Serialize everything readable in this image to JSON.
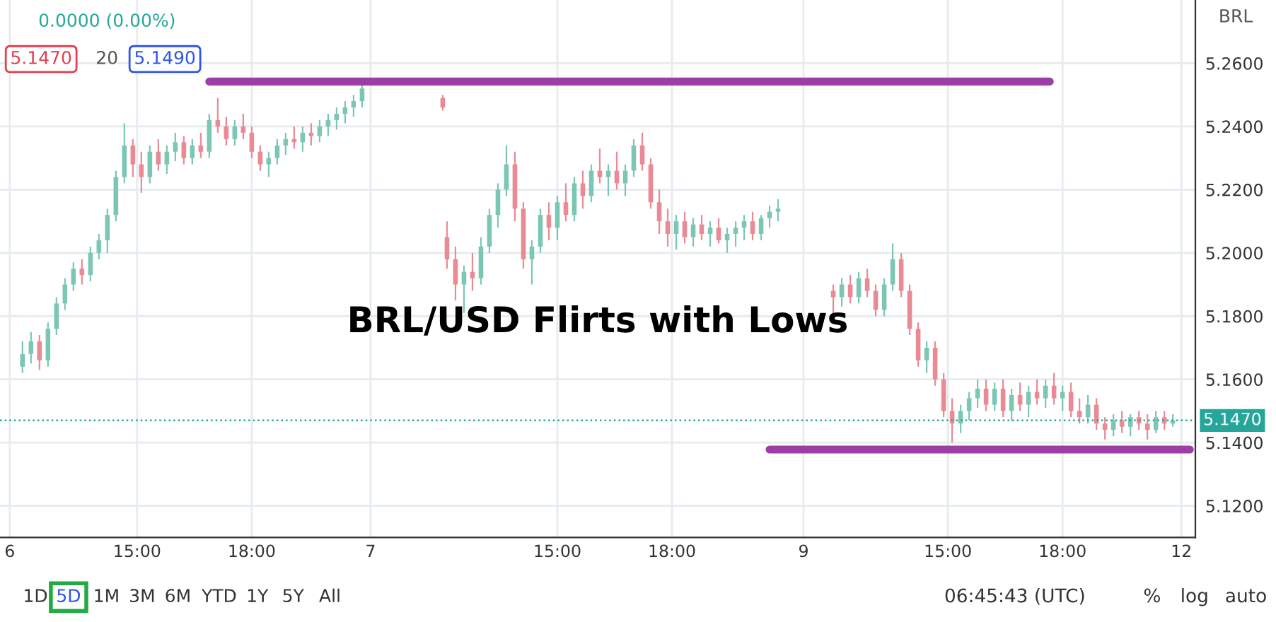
{
  "chart_data": {
    "type": "candlestick",
    "title": "BRL/USD Flirts with Lows",
    "categories": [
      "6",
      null,
      null,
      null,
      null,
      null,
      null,
      null,
      null,
      null,
      null,
      null,
      null,
      null,
      null,
      null,
      null,
      null,
      null,
      null,
      null,
      null,
      null,
      null,
      null,
      null,
      null,
      null,
      null,
      null,
      "15:00",
      null,
      null,
      null,
      null,
      null,
      null,
      null,
      null,
      null,
      null,
      null,
      null,
      null,
      null,
      null,
      null,
      null,
      null,
      null,
      null,
      null,
      null,
      null,
      null,
      null,
      null,
      "18:00",
      null,
      null,
      null,
      null,
      null,
      null,
      null,
      null,
      null,
      null,
      null,
      null,
      null,
      null,
      null,
      null,
      null,
      null,
      null,
      null,
      null,
      null,
      null,
      null,
      null,
      null,
      null,
      "7",
      null,
      null,
      null,
      null,
      null,
      null,
      null,
      null,
      null,
      null,
      null,
      null,
      null,
      null,
      null,
      null,
      null,
      null,
      null,
      null,
      null,
      null,
      null,
      null,
      null,
      null,
      null,
      null,
      null,
      null,
      null,
      null,
      null,
      null,
      null,
      null,
      null,
      null,
      null,
      null,
      null,
      null,
      null,
      "15:00",
      null,
      null,
      null,
      null,
      null,
      null,
      null,
      null,
      null,
      null,
      null,
      null,
      null,
      null,
      null,
      null,
      null,
      null,
      null,
      null,
      null,
      null,
      null,
      null,
      null,
      null,
      "18:00",
      null,
      null,
      null,
      null,
      null,
      null,
      null,
      null,
      null,
      null,
      null,
      null,
      null,
      null,
      null,
      null,
      null,
      null,
      null,
      null,
      null,
      null,
      null,
      null,
      null,
      null,
      null,
      null,
      null,
      null,
      "9",
      null,
      null,
      null,
      null,
      null,
      null,
      null,
      null,
      null,
      null,
      null,
      null,
      null,
      null,
      null,
      null,
      null,
      null,
      null,
      null,
      null,
      null,
      null,
      null,
      null,
      null,
      null,
      null,
      null,
      null,
      null,
      null,
      null,
      "15:00",
      null,
      null,
      null,
      null,
      null,
      null,
      null,
      null,
      null,
      null,
      null,
      null,
      null,
      null,
      null,
      null,
      null,
      null,
      null,
      null,
      null,
      null,
      null,
      null,
      null,
      null,
      "18:00",
      null,
      null,
      null,
      null,
      null,
      null,
      null,
      null,
      null,
      null,
      null,
      null,
      null,
      null,
      null,
      null,
      null,
      null,
      null,
      null,
      null,
      null,
      null,
      null,
      null,
      null,
      null,
      "12",
      null,
      null,
      null,
      null
    ],
    "ohlc": [
      null,
      null,
      null,
      [
        5.164,
        5.172,
        5.162,
        5.168
      ],
      null,
      [
        5.168,
        5.175,
        5.165,
        5.172
      ],
      null,
      [
        5.172,
        5.174,
        5.163,
        5.166
      ],
      null,
      [
        5.166,
        5.178,
        5.164,
        5.176
      ],
      null,
      [
        5.176,
        5.186,
        5.174,
        5.184
      ],
      null,
      [
        5.184,
        5.192,
        5.182,
        5.19
      ],
      null,
      [
        5.19,
        5.197,
        5.188,
        5.195
      ],
      null,
      [
        5.195,
        5.198,
        5.19,
        5.193
      ],
      null,
      [
        5.193,
        5.202,
        5.191,
        5.2
      ],
      null,
      [
        5.2,
        5.206,
        5.198,
        5.204
      ],
      null,
      [
        5.204,
        5.214,
        5.2,
        5.212
      ],
      null,
      [
        5.212,
        5.226,
        5.21,
        5.224
      ],
      null,
      [
        5.224,
        5.241,
        5.222,
        5.234
      ],
      null,
      [
        5.234,
        5.236,
        5.224,
        5.228
      ],
      null,
      [
        5.228,
        5.232,
        5.219,
        5.224
      ],
      null,
      [
        5.224,
        5.234,
        5.222,
        5.232
      ],
      null,
      [
        5.232,
        5.236,
        5.226,
        5.228
      ],
      null,
      [
        5.228,
        5.234,
        5.225,
        5.232
      ],
      null,
      [
        5.232,
        5.238,
        5.229,
        5.235
      ],
      null,
      [
        5.235,
        5.237,
        5.228,
        5.23
      ],
      null,
      [
        5.23,
        5.236,
        5.228,
        5.234
      ],
      null,
      [
        5.234,
        5.238,
        5.23,
        5.232
      ],
      null,
      [
        5.232,
        5.244,
        5.23,
        5.242
      ],
      null,
      [
        5.242,
        5.249,
        5.238,
        5.24
      ],
      null,
      [
        5.24,
        5.243,
        5.234,
        5.236
      ],
      null,
      [
        5.236,
        5.242,
        5.234,
        5.24
      ],
      null,
      [
        5.24,
        5.244,
        5.236,
        5.238
      ],
      null,
      [
        5.238,
        5.24,
        5.23,
        5.232
      ],
      null,
      [
        5.232,
        5.234,
        5.226,
        5.228
      ],
      null,
      [
        5.228,
        5.232,
        5.224,
        5.23
      ],
      null,
      [
        5.23,
        5.236,
        5.228,
        5.234
      ],
      null,
      [
        5.234,
        5.238,
        5.231,
        5.236
      ],
      null,
      [
        5.236,
        5.24,
        5.233,
        5.235
      ],
      null,
      [
        5.235,
        5.24,
        5.232,
        5.238
      ],
      null,
      [
        5.238,
        5.241,
        5.234,
        5.237
      ],
      null,
      [
        5.237,
        5.242,
        5.235,
        5.24
      ],
      null,
      [
        5.24,
        5.244,
        5.237,
        5.242
      ],
      null,
      [
        5.242,
        5.246,
        5.239,
        5.244
      ],
      null,
      [
        5.244,
        5.248,
        5.241,
        5.246
      ],
      null,
      [
        5.246,
        5.25,
        5.243,
        5.248
      ],
      null,
      [
        5.248,
        5.254,
        5.246,
        5.252
      ],
      null,
      null,
      null,
      null,
      null,
      null,
      null,
      null,
      null,
      null,
      null,
      null,
      null,
      null,
      null,
      null,
      null,
      null,
      [
        5.249,
        5.25,
        5.245,
        5.246
      ],
      [
        5.205,
        5.21,
        5.195,
        5.198
      ],
      null,
      [
        5.198,
        5.202,
        5.185,
        5.19
      ],
      null,
      [
        5.19,
        5.196,
        5.181,
        5.194
      ],
      null,
      [
        5.194,
        5.2,
        5.188,
        5.192
      ],
      null,
      [
        5.192,
        5.205,
        5.19,
        5.202
      ],
      null,
      [
        5.202,
        5.214,
        5.2,
        5.212
      ],
      null,
      [
        5.212,
        5.222,
        5.208,
        5.22
      ],
      null,
      [
        5.22,
        5.234,
        5.218,
        5.228
      ],
      null,
      [
        5.228,
        5.232,
        5.21,
        5.214
      ],
      null,
      [
        5.214,
        5.216,
        5.195,
        5.198
      ],
      null,
      [
        5.198,
        5.204,
        5.19,
        5.202
      ],
      null,
      [
        5.202,
        5.214,
        5.2,
        5.212
      ],
      null,
      [
        5.212,
        5.216,
        5.204,
        5.208
      ],
      null,
      [
        5.208,
        5.218,
        5.204,
        5.216
      ],
      null,
      [
        5.216,
        5.222,
        5.21,
        5.212
      ],
      null,
      [
        5.212,
        5.224,
        5.21,
        5.222
      ],
      null,
      [
        5.222,
        5.226,
        5.214,
        5.218
      ],
      null,
      [
        5.218,
        5.228,
        5.216,
        5.226
      ],
      null,
      [
        5.226,
        5.233,
        5.222,
        5.224
      ],
      null,
      [
        5.224,
        5.228,
        5.218,
        5.226
      ],
      null,
      [
        5.226,
        5.232,
        5.22,
        5.222
      ],
      null,
      [
        5.222,
        5.228,
        5.218,
        5.226
      ],
      null,
      [
        5.226,
        5.236,
        5.224,
        5.234
      ],
      null,
      [
        5.234,
        5.238,
        5.226,
        5.228
      ],
      null,
      [
        5.228,
        5.23,
        5.214,
        5.216
      ],
      null,
      [
        5.216,
        5.22,
        5.206,
        5.21
      ],
      null,
      [
        5.21,
        5.214,
        5.202,
        5.206
      ],
      null,
      [
        5.206,
        5.212,
        5.201,
        5.21
      ],
      null,
      [
        5.21,
        5.213,
        5.203,
        5.205
      ],
      null,
      [
        5.205,
        5.211,
        5.202,
        5.209
      ],
      null,
      [
        5.209,
        5.212,
        5.204,
        5.206
      ],
      null,
      [
        5.206,
        5.21,
        5.202,
        5.208
      ],
      null,
      [
        5.208,
        5.211,
        5.203,
        5.204
      ],
      null,
      [
        5.204,
        5.208,
        5.2,
        5.206
      ],
      null,
      [
        5.206,
        5.21,
        5.202,
        5.208
      ],
      null,
      [
        5.208,
        5.212,
        5.204,
        5.21
      ],
      null,
      [
        5.21,
        5.213,
        5.204,
        5.206
      ],
      null,
      [
        5.206,
        5.212,
        5.204,
        5.211
      ],
      null,
      [
        5.211,
        5.215,
        5.208,
        5.213
      ],
      null,
      [
        5.213,
        5.217,
        5.21,
        5.214
      ],
      null,
      null,
      null,
      null,
      null,
      null,
      null,
      null,
      null,
      null,
      null,
      null,
      [
        5.188,
        5.19,
        5.18,
        5.186
      ],
      null,
      [
        5.186,
        5.192,
        5.183,
        5.19
      ],
      null,
      [
        5.19,
        5.193,
        5.184,
        5.186
      ],
      null,
      [
        5.186,
        5.194,
        5.184,
        5.192
      ],
      null,
      [
        5.192,
        5.195,
        5.186,
        5.188
      ],
      null,
      [
        5.188,
        5.19,
        5.18,
        5.182
      ],
      null,
      [
        5.182,
        5.192,
        5.18,
        5.19
      ],
      null,
      [
        5.19,
        5.203,
        5.188,
        5.198
      ],
      null,
      [
        5.198,
        5.2,
        5.186,
        5.188
      ],
      null,
      [
        5.188,
        5.19,
        5.174,
        5.176
      ],
      null,
      [
        5.176,
        5.178,
        5.164,
        5.166
      ],
      null,
      [
        5.166,
        5.172,
        5.162,
        5.17
      ],
      null,
      [
        5.17,
        5.172,
        5.158,
        5.16
      ],
      null,
      [
        5.16,
        5.162,
        5.148,
        5.15
      ],
      null,
      [
        5.15,
        5.154,
        5.14,
        5.146
      ],
      null,
      [
        5.146,
        5.152,
        5.143,
        5.15
      ],
      null,
      [
        5.15,
        5.156,
        5.147,
        5.154
      ],
      null,
      [
        5.154,
        5.16,
        5.151,
        5.157
      ],
      null,
      [
        5.157,
        5.16,
        5.15,
        5.152
      ],
      null,
      [
        5.152,
        5.159,
        5.15,
        5.157
      ],
      null,
      [
        5.157,
        5.16,
        5.148,
        5.15
      ],
      null,
      [
        5.15,
        5.157,
        5.147,
        5.155
      ],
      null,
      [
        5.155,
        5.159,
        5.15,
        5.152
      ],
      null,
      [
        5.152,
        5.158,
        5.148,
        5.156
      ],
      null,
      [
        5.156,
        5.16,
        5.152,
        5.154
      ],
      null,
      [
        5.154,
        5.16,
        5.151,
        5.158
      ],
      null,
      [
        5.158,
        5.162,
        5.152,
        5.154
      ],
      null,
      [
        5.154,
        5.158,
        5.15,
        5.156
      ],
      null,
      [
        5.156,
        5.159,
        5.148,
        5.15
      ],
      null,
      [
        5.15,
        5.154,
        5.146,
        5.148
      ],
      null,
      [
        5.148,
        5.155,
        5.146,
        5.152
      ],
      null,
      [
        5.152,
        5.154,
        5.144,
        5.146
      ],
      null,
      [
        5.146,
        5.148,
        5.141,
        5.144
      ],
      null,
      [
        5.144,
        5.149,
        5.142,
        5.147
      ],
      null,
      [
        5.147,
        5.15,
        5.143,
        5.145
      ],
      null,
      [
        5.145,
        5.149,
        5.142,
        5.148
      ],
      null,
      [
        5.148,
        5.15,
        5.144,
        5.146
      ],
      null,
      [
        5.146,
        5.149,
        5.141,
        5.144
      ],
      null,
      [
        5.144,
        5.15,
        5.143,
        5.148
      ],
      null,
      [
        5.148,
        5.15,
        5.144,
        5.146
      ],
      null,
      [
        5.146,
        5.149,
        5.145,
        5.147
      ],
      null,
      null,
      null,
      null,
      null,
      null
    ],
    "series": [
      {
        "type": "line",
        "color": "#9c3ea6",
        "values": [
          null,
          null,
          null,
          null,
          null,
          null,
          null,
          null,
          null,
          null,
          null,
          null,
          null,
          null,
          null,
          null,
          null,
          null,
          null,
          null,
          null,
          null,
          null,
          null,
          null,
          null,
          null,
          null,
          null,
          null,
          null,
          null,
          null,
          null,
          null,
          null,
          null,
          null,
          null,
          null,
          null,
          null,
          null,
          null,
          null,
          null,
          null,
          5.2542,
          5.2542,
          5.2542,
          5.2542,
          5.2542,
          5.2542,
          5.2542,
          5.2542,
          5.2542,
          5.2542,
          5.2542,
          5.2542,
          5.2542,
          5.2542,
          5.2542,
          5.2542,
          5.2542,
          5.2542,
          5.2542,
          5.2542,
          5.2542,
          5.2542,
          5.2542,
          5.2542,
          5.2542,
          5.2542,
          5.2542,
          5.2542,
          5.2542,
          5.2542,
          5.2542,
          5.2542,
          5.2542,
          5.2542,
          5.2542,
          5.2542,
          5.2542,
          5.2542,
          5.2542,
          5.2542,
          5.2542,
          5.2542,
          5.2542,
          5.2542,
          5.2542,
          5.2542,
          5.2542,
          5.2542,
          5.2542,
          5.2542,
          5.2542,
          5.2542,
          5.2542,
          5.2542,
          5.2542,
          5.2542,
          5.2542,
          5.2542,
          5.2542,
          5.2542,
          5.2542,
          5.2542,
          5.2542,
          5.2542,
          5.2542,
          5.2542,
          5.2542,
          5.2542,
          5.2542,
          5.2542,
          5.2542,
          5.2542,
          5.2542,
          5.2542,
          5.2542,
          5.2542,
          5.2542,
          5.2542,
          5.2542,
          5.2542,
          5.2542,
          5.2542,
          5.2542,
          5.2542,
          5.2542,
          5.2542,
          5.2542,
          5.2542,
          5.2542,
          5.2542,
          5.2542,
          5.2542,
          5.2542,
          5.2542,
          5.2542,
          5.2542,
          5.2542,
          5.2542,
          5.2542,
          5.2542,
          5.2542,
          5.2542,
          5.2542,
          5.2542,
          5.2542,
          5.2542,
          5.2542,
          5.2542,
          5.2542,
          5.2542,
          5.2542,
          5.2542,
          5.2542,
          5.2542,
          5.2542,
          5.2542,
          5.2542,
          5.2542,
          5.2542,
          5.2542,
          5.2542,
          5.2542,
          5.2542,
          5.2542,
          5.2542,
          5.2542,
          5.2542,
          5.2542,
          5.2542,
          5.2542,
          5.2542,
          5.2542,
          5.2542,
          5.2542,
          5.2542,
          5.2542,
          5.2542,
          5.2542,
          5.2542,
          5.2542,
          5.2542,
          5.2542,
          5.2542,
          5.2542,
          5.2542,
          5.2542,
          5.2542,
          5.2542,
          5.2542,
          5.2542,
          5.2542,
          5.2542,
          5.2542,
          5.2542,
          5.2542,
          5.2542,
          5.2542,
          5.2542,
          5.2542,
          5.2542,
          5.2542,
          5.2542,
          5.2542,
          5.2542,
          5.2542,
          5.2542,
          5.2542,
          5.2542,
          5.2542,
          5.2542,
          5.2542,
          5.2542,
          5.2542,
          5.2542,
          5.2542,
          5.2542,
          5.2542,
          5.2542,
          5.2542,
          5.2542,
          5.2542,
          5.2542,
          5.2542,
          5.2542,
          5.2542,
          5.2542,
          5.2542,
          5.2542,
          5.2542,
          5.2542,
          5.2542,
          5.2542,
          5.2542,
          5.2542,
          5.2542,
          5.2542,
          5.2542,
          5.2542,
          5.2542,
          null,
          null,
          null,
          null,
          null,
          null,
          null,
          null,
          null,
          null,
          null,
          null,
          null,
          null,
          null,
          null,
          null,
          null,
          null,
          null,
          null,
          null,
          null,
          null,
          null,
          null,
          null,
          null,
          null,
          null,
          null,
          null,
          null,
          null,
          null
        ]
      },
      {
        "type": "line",
        "color": "#9c3ea6",
        "values": [
          null,
          null,
          null,
          null,
          null,
          null,
          null,
          null,
          null,
          null,
          null,
          null,
          null,
          null,
          null,
          null,
          null,
          null,
          null,
          null,
          null,
          null,
          null,
          null,
          null,
          null,
          null,
          null,
          null,
          null,
          null,
          null,
          null,
          null,
          null,
          null,
          null,
          null,
          null,
          null,
          null,
          null,
          null,
          null,
          null,
          null,
          null,
          null,
          null,
          null,
          null,
          null,
          null,
          null,
          null,
          null,
          null,
          null,
          null,
          null,
          null,
          null,
          null,
          null,
          null,
          null,
          null,
          null,
          null,
          null,
          null,
          null,
          null,
          null,
          null,
          null,
          null,
          null,
          null,
          null,
          null,
          null,
          null,
          null,
          null,
          null,
          null,
          null,
          null,
          null,
          null,
          null,
          null,
          null,
          null,
          null,
          null,
          null,
          null,
          null,
          null,
          null,
          null,
          null,
          null,
          null,
          null,
          null,
          null,
          null,
          null,
          null,
          null,
          null,
          null,
          null,
          null,
          null,
          null,
          null,
          null,
          null,
          null,
          null,
          null,
          null,
          null,
          null,
          null,
          null,
          null,
          null,
          null,
          null,
          null,
          null,
          null,
          null,
          null,
          null,
          null,
          null,
          null,
          null,
          null,
          null,
          null,
          null,
          null,
          null,
          null,
          null,
          null,
          null,
          null,
          null,
          null,
          null,
          null,
          null,
          null,
          null,
          null,
          null,
          null,
          null,
          null,
          null,
          null,
          null,
          null,
          null,
          null,
          null,
          null,
          null,
          null,
          null,
          null,
          5.1378,
          5.1378,
          5.1378,
          5.1378,
          5.1378,
          5.1378,
          5.1378,
          5.1378,
          5.1378,
          5.1378,
          5.1378,
          5.1378,
          5.1378,
          5.1378,
          5.1378,
          5.1378,
          5.1378,
          5.1378,
          5.1378,
          5.1378,
          5.1378,
          5.1378,
          5.1378,
          5.1378,
          5.1378,
          5.1378,
          5.1378,
          5.1378,
          5.1378,
          5.1378,
          5.1378,
          5.1378,
          5.1378,
          5.1378,
          5.1378,
          5.1378,
          5.1378,
          5.1378,
          5.1378,
          5.1378,
          5.1378,
          5.1378,
          5.1378,
          5.1378,
          5.1378,
          5.1378,
          5.1378,
          5.1378,
          5.1378,
          5.1378,
          5.1378,
          5.1378,
          5.1378,
          5.1378,
          5.1378,
          5.1378,
          5.1378,
          5.1378,
          5.1378,
          5.1378,
          5.1378,
          5.1378,
          5.1378,
          5.1378,
          5.1378,
          5.1378,
          5.1378,
          5.1378,
          5.1378,
          5.1378,
          5.1378,
          5.1378,
          5.1378,
          5.1378,
          5.1378,
          5.1378,
          5.1378,
          5.1378,
          5.1378,
          5.1378,
          5.1378,
          5.1378,
          5.1378,
          5.1378,
          5.1378,
          5.1378,
          5.1378,
          5.1378,
          5.1378,
          5.1378,
          5.1378,
          5.1378,
          5.1378,
          5.1378,
          5.1378,
          5.1378,
          5.1378,
          5.1378,
          5.1378,
          5.1378,
          null,
          null
        ]
      }
    ],
    "ylim": [
      5.11,
      5.28
    ],
    "yticks": [
      {
        "value": 5.12,
        "label": "5.1200"
      },
      {
        "value": 5.14,
        "label": "5.1400"
      },
      {
        "value": 5.16,
        "label": "5.1600"
      },
      {
        "value": 5.18,
        "label": "5.1800"
      },
      {
        "value": 5.2,
        "label": "5.2000"
      },
      {
        "value": 5.22,
        "label": "5.2200"
      },
      {
        "value": 5.24,
        "label": "5.2400"
      },
      {
        "value": 5.26,
        "label": "5.2600"
      }
    ],
    "ref_lines": [
      {
        "axis": "y",
        "value": 5.147,
        "label": "5.1470",
        "color": "#26a69a",
        "line_style": "dotted"
      }
    ],
    "grid": true,
    "annotations": [
      "0.0000 (0.00%)",
      "5.1470",
      "20",
      "5.1490",
      "BRL",
      "1D",
      "5D",
      "1M",
      "3M",
      "6M",
      "YTD",
      "1Y",
      "5Y",
      "All",
      "06:45:43 (UTC)",
      "%",
      "log",
      "auto"
    ]
  }
}
